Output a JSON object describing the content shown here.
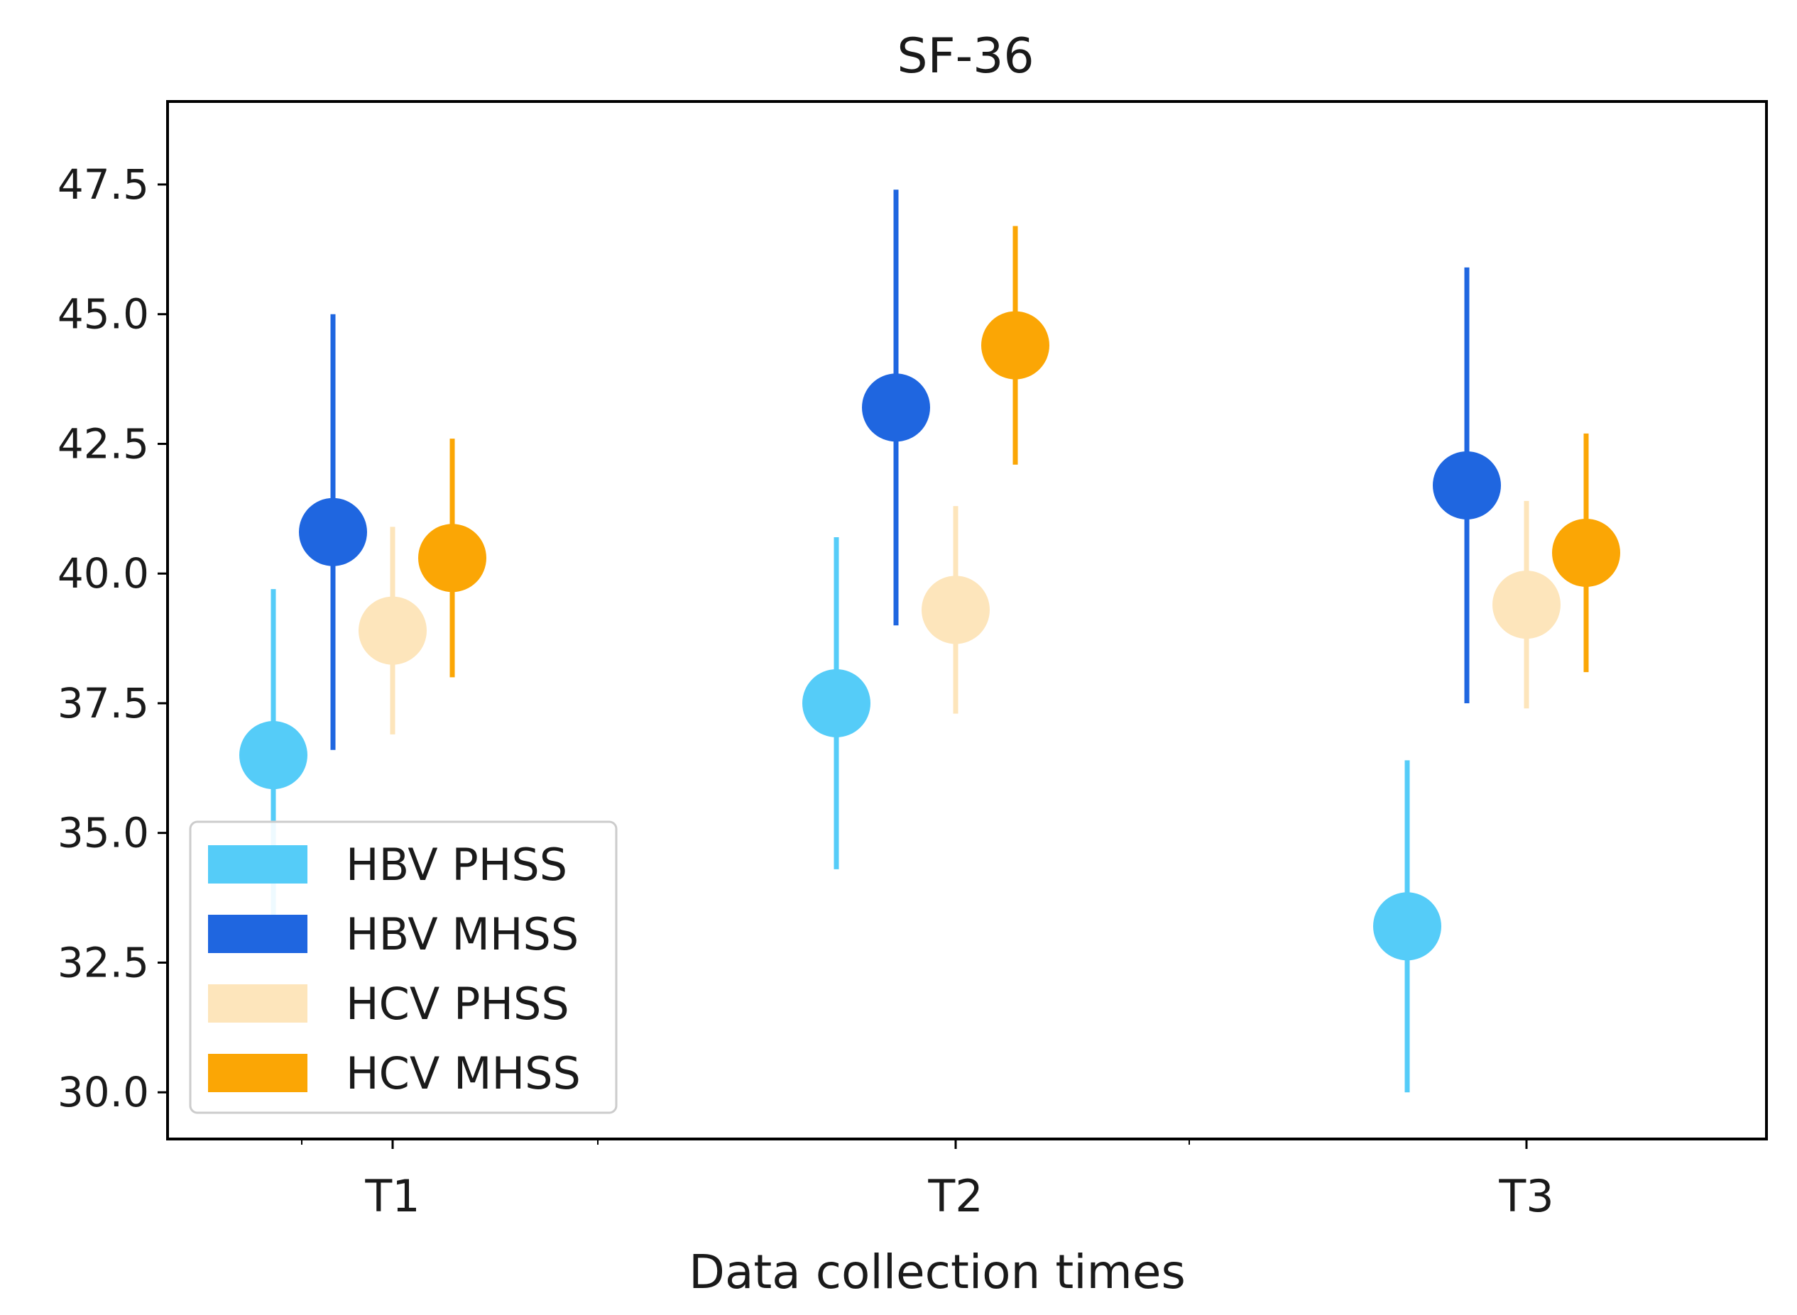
{
  "chart_data": {
    "type": "scatter",
    "subtype": "point-with-error-bars",
    "title": "SF-36",
    "xlabel": "Data collection times",
    "ylabel": "",
    "categories": [
      "T1",
      "T2",
      "T3"
    ],
    "ylim": [
      29.1,
      49.1
    ],
    "yticks": [
      30.0,
      32.5,
      35.0,
      37.5,
      40.0,
      42.5,
      45.0,
      47.5
    ],
    "ytick_labels": [
      "30.0",
      "32.5",
      "35.0",
      "37.5",
      "40.0",
      "42.5",
      "45.0",
      "47.5"
    ],
    "grid": false,
    "legend": {
      "placement": "lower-left"
    },
    "series": [
      {
        "name": "HBV PHSS",
        "color": "#55ccf8",
        "values": [
          36.5,
          37.5,
          33.2
        ],
        "lower": [
          33.3,
          34.3,
          30.0
        ],
        "upper": [
          39.7,
          40.7,
          36.4
        ]
      },
      {
        "name": "HBV MHSS",
        "color": "#1f66e0",
        "values": [
          40.8,
          43.2,
          41.7
        ],
        "lower": [
          36.6,
          39.0,
          37.5
        ],
        "upper": [
          45.0,
          47.4,
          45.9
        ]
      },
      {
        "name": "HCV PHSS",
        "color": "#fde5bb",
        "values": [
          38.9,
          39.3,
          39.4
        ],
        "lower": [
          36.9,
          37.3,
          37.4
        ],
        "upper": [
          40.9,
          41.3,
          41.4
        ]
      },
      {
        "name": "HCV MHSS",
        "color": "#fba605",
        "values": [
          40.3,
          44.4,
          40.4
        ],
        "lower": [
          38.0,
          42.1,
          38.1
        ],
        "upper": [
          42.6,
          46.7,
          42.7
        ]
      }
    ]
  }
}
